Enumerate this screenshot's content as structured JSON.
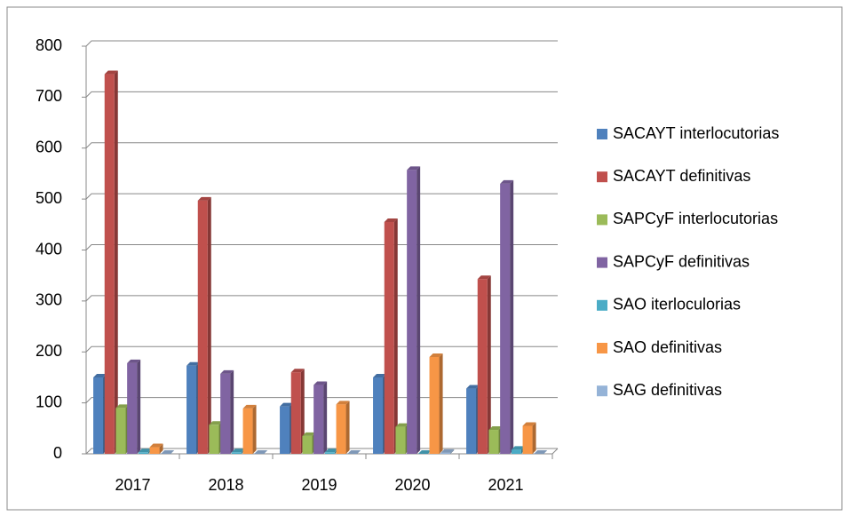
{
  "chart_data": {
    "type": "bar",
    "categories": [
      "2017",
      "2018",
      "2019",
      "2020",
      "2021"
    ],
    "series": [
      {
        "name": "SACAYT interlocutorias",
        "color": "#4f81bd",
        "values": [
          150,
          173,
          93,
          150,
          128
        ]
      },
      {
        "name": "SACAYT definitivas",
        "color": "#c0504d",
        "values": [
          745,
          497,
          160,
          455,
          343
        ]
      },
      {
        "name": "SAPCyF interlocutorias",
        "color": "#9bbb59",
        "values": [
          90,
          57,
          35,
          53,
          47
        ]
      },
      {
        "name": "SAPCyF definitivas",
        "color": "#8064a2",
        "values": [
          178,
          157,
          135,
          557,
          530
        ]
      },
      {
        "name": "SAO iterloculorias",
        "color": "#4bacc6",
        "values": [
          3,
          3,
          3,
          0,
          8
        ]
      },
      {
        "name": "SAO definitivas",
        "color": "#f79646",
        "values": [
          13,
          89,
          97,
          190,
          55
        ]
      },
      {
        "name": "SAG definitivas",
        "color": "#95b3d7",
        "values": [
          0,
          0,
          0,
          2,
          0
        ]
      }
    ],
    "ylim": [
      0,
      800
    ],
    "yticks": [
      0,
      100,
      200,
      300,
      400,
      500,
      600,
      700,
      800
    ],
    "grid": true,
    "legend": "right"
  }
}
